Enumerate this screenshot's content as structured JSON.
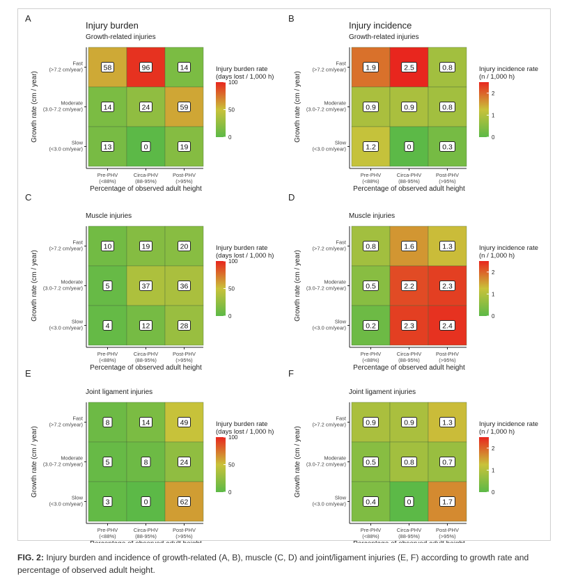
{
  "caption": {
    "label": "FIG. 2:",
    "text": "Injury burden and incidence of growth-related (A, B), muscle (C, D) and joint/ligament injuries (E, F) according to growth rate and percentage of observed adult height."
  },
  "colors": {
    "low": "#5cb947",
    "mid": "#c9c23a",
    "high": "#e8261e",
    "border": "#222222"
  },
  "chart_data": [
    {
      "type": "heatmap",
      "letter": "A",
      "title": "Injury burden",
      "subtitle": "Growth-related injuries",
      "ylabel": "Growth rate (cm / year)",
      "xlabel": "Percentage of observed adult height",
      "rows": [
        [
          "Fast",
          "(>7.2 cm/year)"
        ],
        [
          "Moderate",
          "(3.0-7.2 cm/year)"
        ],
        [
          "Slow",
          "(<3.0 cm/year)"
        ]
      ],
      "cols": [
        [
          "Pre-PHV",
          "(<88%)"
        ],
        [
          "Circa-PHV",
          "(88-95%)"
        ],
        [
          "Post-PHV",
          "(>95%)"
        ]
      ],
      "values": [
        [
          "58",
          "96",
          "14"
        ],
        [
          "14",
          "24",
          "59"
        ],
        [
          "13",
          "0",
          "19"
        ]
      ],
      "legend": {
        "title": [
          "Injury burden rate",
          "(days lost / 1,000 h)"
        ],
        "ticks": [
          "100",
          "50",
          "0"
        ],
        "min": 0,
        "max": 100
      }
    },
    {
      "type": "heatmap",
      "letter": "B",
      "title": "Injury incidence",
      "subtitle": "Growth-related injuries",
      "ylabel": "Growth rate (cm / year)",
      "xlabel": "Percentage of observed adult height",
      "rows": [
        [
          "Fast",
          "(>7.2 cm/year)"
        ],
        [
          "Moderate",
          "(3.0-7.2 cm/year)"
        ],
        [
          "Slow",
          "(<3.0 cm/year)"
        ]
      ],
      "cols": [
        [
          "Pre-PHV",
          "(<88%)"
        ],
        [
          "Circa-PHV",
          "(88-95%)"
        ],
        [
          "Post-PHV",
          "(>95%)"
        ]
      ],
      "values": [
        [
          "1.9",
          "2.5",
          "0.8"
        ],
        [
          "0.9",
          "0.9",
          "0.8"
        ],
        [
          "1.2",
          "0",
          "0.3"
        ]
      ],
      "legend": {
        "title": [
          "Injury incidence rate",
          "(n / 1,000 h)"
        ],
        "ticks": [
          "2",
          "1",
          "0"
        ],
        "min": 0,
        "max": 2.5
      }
    },
    {
      "type": "heatmap",
      "letter": "C",
      "title": "",
      "subtitle": "Muscle injuries",
      "ylabel": "Growth rate (cm / year)",
      "xlabel": "Percentage of observed adult height",
      "rows": [
        [
          "Fast",
          "(>7.2 cm/year)"
        ],
        [
          "Moderate",
          "(3.0-7.2 cm/year)"
        ],
        [
          "Slow",
          "(<3.0 cm/year)"
        ]
      ],
      "cols": [
        [
          "Pre-PHV",
          "(<88%)"
        ],
        [
          "Circa-PHV",
          "(88-95%)"
        ],
        [
          "Post-PHV",
          "(>95%)"
        ]
      ],
      "values": [
        [
          "10",
          "19",
          "20"
        ],
        [
          "5",
          "37",
          "36"
        ],
        [
          "4",
          "12",
          "28"
        ]
      ],
      "legend": {
        "title": [
          "Injury burden rate",
          "(days lost / 1,000 h)"
        ],
        "ticks": [
          "100",
          "50",
          "0"
        ],
        "min": 0,
        "max": 100
      }
    },
    {
      "type": "heatmap",
      "letter": "D",
      "title": "",
      "subtitle": "Muscle injuries",
      "ylabel": "Growth rate (cm / year)",
      "xlabel": "Percentage of observed adult height",
      "rows": [
        [
          "Fast",
          "(>7.2 cm/year)"
        ],
        [
          "Moderate",
          "(3.0-7.2 cm/year)"
        ],
        [
          "Slow",
          "(<3.0 cm/year)"
        ]
      ],
      "cols": [
        [
          "Pre-PHV",
          "(<88%)"
        ],
        [
          "Circa-PHV",
          "(88-95%)"
        ],
        [
          "Post-PHV",
          "(>95%)"
        ]
      ],
      "values": [
        [
          "0.8",
          "1.6",
          "1.3"
        ],
        [
          "0.5",
          "2.2",
          "2.3"
        ],
        [
          "0.2",
          "2.3",
          "2.4"
        ]
      ],
      "legend": {
        "title": [
          "Injury incidence rate",
          "(n / 1,000 h)"
        ],
        "ticks": [
          "2",
          "1",
          "0"
        ],
        "min": 0,
        "max": 2.5
      }
    },
    {
      "type": "heatmap",
      "letter": "E",
      "title": "",
      "subtitle": "Joint ligament injuries",
      "ylabel": "Growth rate (cm / year)",
      "xlabel": "Percentage of observed adult height",
      "rows": [
        [
          "Fast",
          "(>7.2 cm/year)"
        ],
        [
          "Moderate",
          "(3.0-7.2 cm/year)"
        ],
        [
          "Slow",
          "(<3.0 cm/year)"
        ]
      ],
      "cols": [
        [
          "Pre-PHV",
          "(<88%)"
        ],
        [
          "Circa-PHV",
          "(88-95%)"
        ],
        [
          "Post-PHV",
          "(>95%)"
        ]
      ],
      "values": [
        [
          "8",
          "14",
          "49"
        ],
        [
          "5",
          "8",
          "24"
        ],
        [
          "3",
          "0",
          "62"
        ]
      ],
      "legend": {
        "title": [
          "Injury burden rate",
          "(days lost / 1,000 h)"
        ],
        "ticks": [
          "100",
          "50",
          "0"
        ],
        "min": 0,
        "max": 100
      }
    },
    {
      "type": "heatmap",
      "letter": "F",
      "title": "",
      "subtitle": "Joint ligament injuries",
      "ylabel": "Growth rate (cm / year)",
      "xlabel": "Percentage of observed adult height",
      "rows": [
        [
          "Fast",
          "(>7.2 cm/year)"
        ],
        [
          "Moderate",
          "(3.0-7.2 cm/year)"
        ],
        [
          "Slow",
          "(<3.0 cm/year)"
        ]
      ],
      "cols": [
        [
          "Pre-PHV",
          "(<88%)"
        ],
        [
          "Circa-PHV",
          "(88-95%)"
        ],
        [
          "Post-PHV",
          "(>95%)"
        ]
      ],
      "values": [
        [
          "0.9",
          "0.9",
          "1.3"
        ],
        [
          "0.5",
          "0.8",
          "0.7"
        ],
        [
          "0.4",
          "0",
          "1.7"
        ]
      ],
      "legend": {
        "title": [
          "Injury incidence rate",
          "(n / 1,000 h)"
        ],
        "ticks": [
          "2",
          "1",
          "0"
        ],
        "min": 0,
        "max": 2.5
      }
    }
  ]
}
